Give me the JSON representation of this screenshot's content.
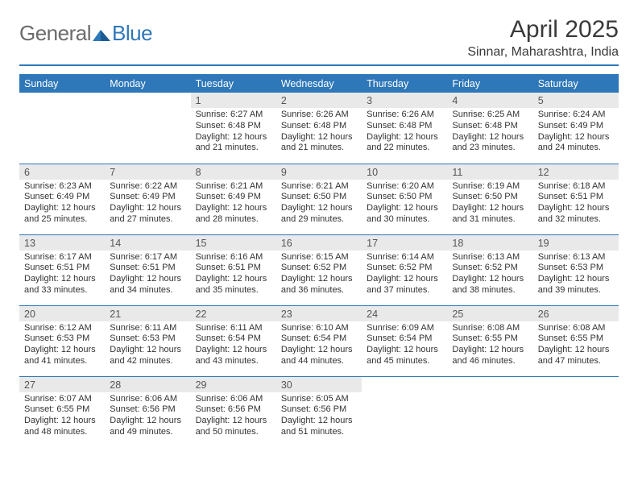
{
  "brand": {
    "part1": "General",
    "part2": "Blue"
  },
  "title": "April 2025",
  "location": "Sinnar, Maharashtra, India",
  "colors": {
    "accent": "#2e77b8",
    "dayHeaderBg": "#e9e9e9",
    "text": "#333333",
    "bg": "#ffffff"
  },
  "weekdays": [
    "Sunday",
    "Monday",
    "Tuesday",
    "Wednesday",
    "Thursday",
    "Friday",
    "Saturday"
  ],
  "weeks": [
    [
      null,
      null,
      {
        "n": "1",
        "sr": "6:27 AM",
        "ss": "6:48 PM",
        "dl": "12 hours and 21 minutes."
      },
      {
        "n": "2",
        "sr": "6:26 AM",
        "ss": "6:48 PM",
        "dl": "12 hours and 21 minutes."
      },
      {
        "n": "3",
        "sr": "6:26 AM",
        "ss": "6:48 PM",
        "dl": "12 hours and 22 minutes."
      },
      {
        "n": "4",
        "sr": "6:25 AM",
        "ss": "6:48 PM",
        "dl": "12 hours and 23 minutes."
      },
      {
        "n": "5",
        "sr": "6:24 AM",
        "ss": "6:49 PM",
        "dl": "12 hours and 24 minutes."
      }
    ],
    [
      {
        "n": "6",
        "sr": "6:23 AM",
        "ss": "6:49 PM",
        "dl": "12 hours and 25 minutes."
      },
      {
        "n": "7",
        "sr": "6:22 AM",
        "ss": "6:49 PM",
        "dl": "12 hours and 27 minutes."
      },
      {
        "n": "8",
        "sr": "6:21 AM",
        "ss": "6:49 PM",
        "dl": "12 hours and 28 minutes."
      },
      {
        "n": "9",
        "sr": "6:21 AM",
        "ss": "6:50 PM",
        "dl": "12 hours and 29 minutes."
      },
      {
        "n": "10",
        "sr": "6:20 AM",
        "ss": "6:50 PM",
        "dl": "12 hours and 30 minutes."
      },
      {
        "n": "11",
        "sr": "6:19 AM",
        "ss": "6:50 PM",
        "dl": "12 hours and 31 minutes."
      },
      {
        "n": "12",
        "sr": "6:18 AM",
        "ss": "6:51 PM",
        "dl": "12 hours and 32 minutes."
      }
    ],
    [
      {
        "n": "13",
        "sr": "6:17 AM",
        "ss": "6:51 PM",
        "dl": "12 hours and 33 minutes."
      },
      {
        "n": "14",
        "sr": "6:17 AM",
        "ss": "6:51 PM",
        "dl": "12 hours and 34 minutes."
      },
      {
        "n": "15",
        "sr": "6:16 AM",
        "ss": "6:51 PM",
        "dl": "12 hours and 35 minutes."
      },
      {
        "n": "16",
        "sr": "6:15 AM",
        "ss": "6:52 PM",
        "dl": "12 hours and 36 minutes."
      },
      {
        "n": "17",
        "sr": "6:14 AM",
        "ss": "6:52 PM",
        "dl": "12 hours and 37 minutes."
      },
      {
        "n": "18",
        "sr": "6:13 AM",
        "ss": "6:52 PM",
        "dl": "12 hours and 38 minutes."
      },
      {
        "n": "19",
        "sr": "6:13 AM",
        "ss": "6:53 PM",
        "dl": "12 hours and 39 minutes."
      }
    ],
    [
      {
        "n": "20",
        "sr": "6:12 AM",
        "ss": "6:53 PM",
        "dl": "12 hours and 41 minutes."
      },
      {
        "n": "21",
        "sr": "6:11 AM",
        "ss": "6:53 PM",
        "dl": "12 hours and 42 minutes."
      },
      {
        "n": "22",
        "sr": "6:11 AM",
        "ss": "6:54 PM",
        "dl": "12 hours and 43 minutes."
      },
      {
        "n": "23",
        "sr": "6:10 AM",
        "ss": "6:54 PM",
        "dl": "12 hours and 44 minutes."
      },
      {
        "n": "24",
        "sr": "6:09 AM",
        "ss": "6:54 PM",
        "dl": "12 hours and 45 minutes."
      },
      {
        "n": "25",
        "sr": "6:08 AM",
        "ss": "6:55 PM",
        "dl": "12 hours and 46 minutes."
      },
      {
        "n": "26",
        "sr": "6:08 AM",
        "ss": "6:55 PM",
        "dl": "12 hours and 47 minutes."
      }
    ],
    [
      {
        "n": "27",
        "sr": "6:07 AM",
        "ss": "6:55 PM",
        "dl": "12 hours and 48 minutes."
      },
      {
        "n": "28",
        "sr": "6:06 AM",
        "ss": "6:56 PM",
        "dl": "12 hours and 49 minutes."
      },
      {
        "n": "29",
        "sr": "6:06 AM",
        "ss": "6:56 PM",
        "dl": "12 hours and 50 minutes."
      },
      {
        "n": "30",
        "sr": "6:05 AM",
        "ss": "6:56 PM",
        "dl": "12 hours and 51 minutes."
      },
      null,
      null,
      null
    ]
  ],
  "labels": {
    "sunrise": "Sunrise: ",
    "sunset": "Sunset: ",
    "daylight": "Daylight: "
  }
}
